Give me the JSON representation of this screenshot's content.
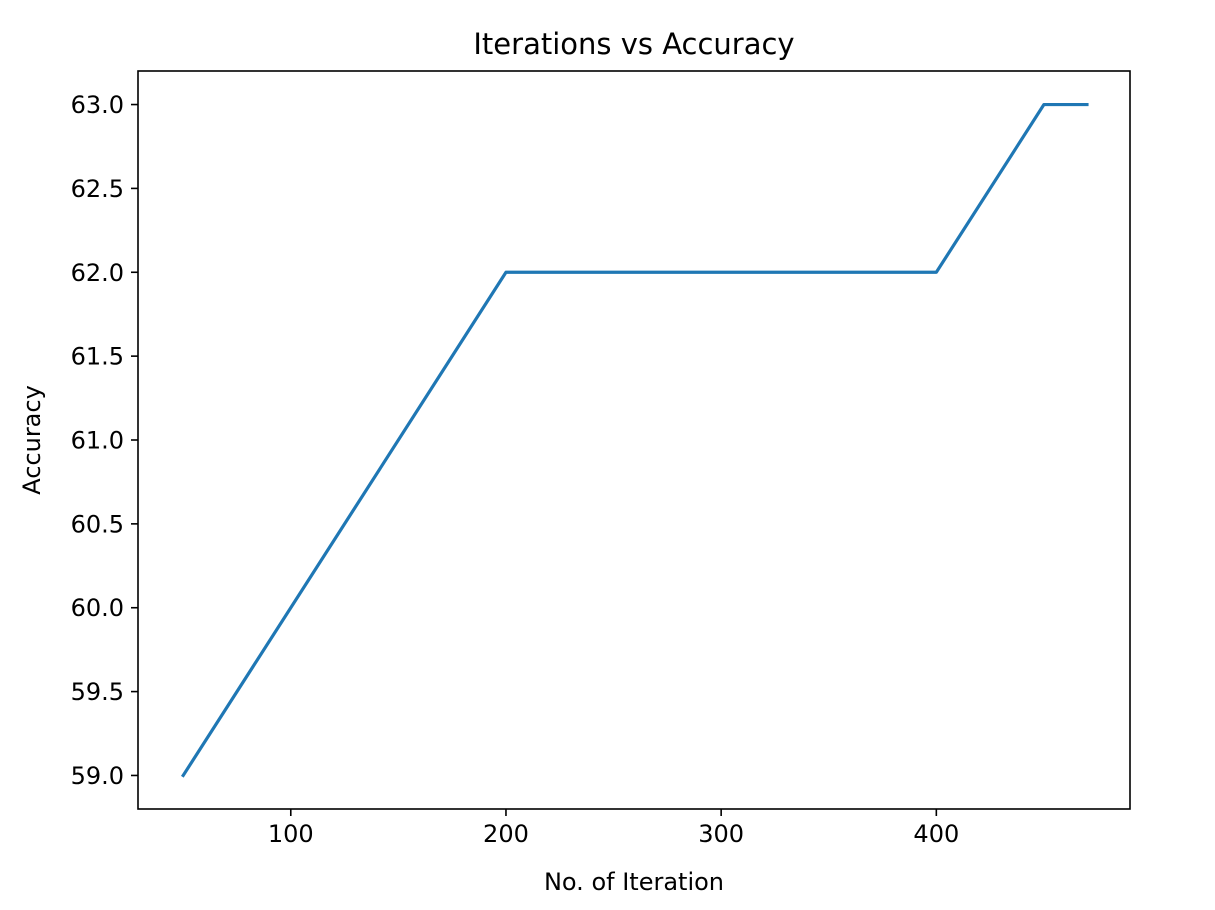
{
  "chart_data": {
    "type": "line",
    "title": "Iterations vs Accuracy",
    "xlabel": "No. of Iteration",
    "ylabel": "Accuracy",
    "xlim": [
      29,
      490
    ],
    "ylim": [
      58.8,
      63.2
    ],
    "xticks": [
      100,
      200,
      300,
      400
    ],
    "xtick_labels": [
      "100",
      "200",
      "300",
      "400"
    ],
    "yticks": [
      59.0,
      59.5,
      60.0,
      60.5,
      61.0,
      61.5,
      62.0,
      62.5,
      63.0
    ],
    "ytick_labels": [
      "59.0",
      "59.5",
      "60.0",
      "60.5",
      "61.0",
      "61.5",
      "62.0",
      "62.5",
      "63.0"
    ],
    "grid": false,
    "series": [
      {
        "color": "#1f77b4",
        "x": [
          50,
          200,
          400,
          450,
          470
        ],
        "y": [
          59,
          62,
          62,
          63,
          63
        ]
      }
    ]
  }
}
